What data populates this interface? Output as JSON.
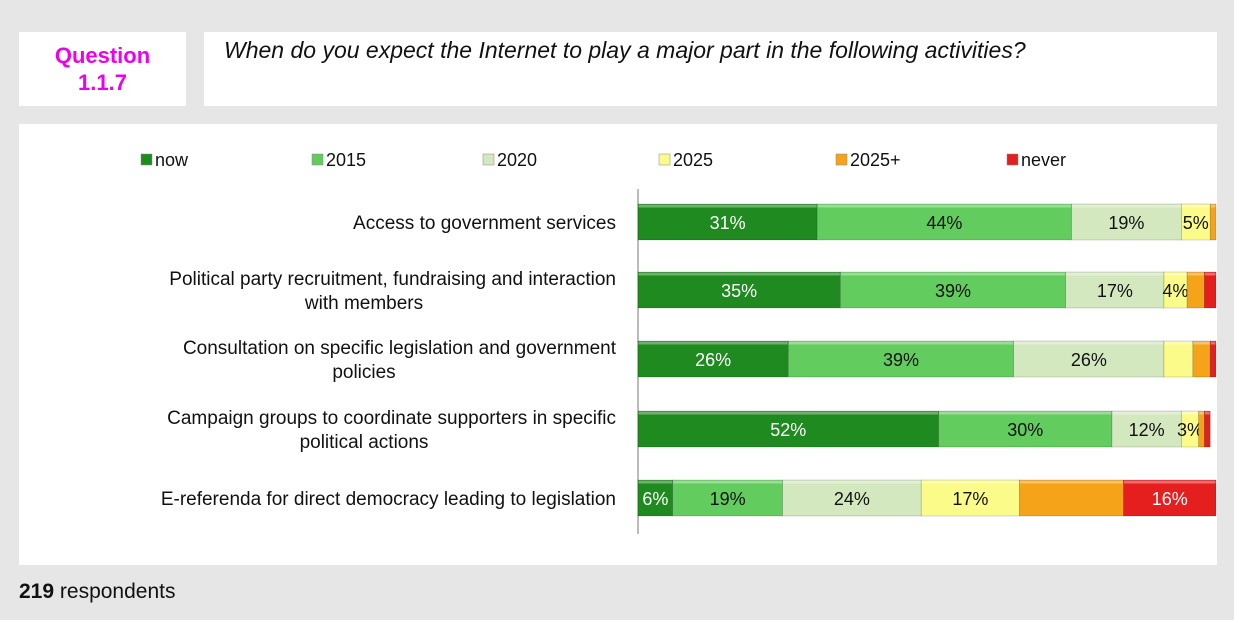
{
  "question": {
    "label": "Question",
    "number": "1.1.7",
    "text": "When do you expect the Internet to play a major part in the following activities?"
  },
  "footer": {
    "count": "219",
    "label": "respondents"
  },
  "colors": {
    "now": "#1f8a1f",
    "2015": "#62cc5e",
    "2020": "#d4e8c0",
    "2025": "#fbfb8a",
    "2025+": "#f5a318",
    "never": "#e51e1e"
  },
  "chart_data": {
    "type": "bar",
    "orientation": "horizontal",
    "stacked": true,
    "categories": [
      [
        "Access to government services"
      ],
      [
        "Political party recruitment, fundraising and interaction",
        "with members"
      ],
      [
        "Consultation on specific legislation and government",
        "policies"
      ],
      [
        "Campaign groups to coordinate supporters in specific",
        "political actions"
      ],
      [
        "E-referenda for direct democracy leading to legislation"
      ]
    ],
    "xlim": [
      0,
      100
    ],
    "grid": false,
    "legend": "top",
    "series": [
      {
        "name": "now",
        "values": [
          31,
          35,
          26,
          52,
          6
        ],
        "labels": [
          "31%",
          "35%",
          "26%",
          "52%",
          "6%"
        ]
      },
      {
        "name": "2015",
        "values": [
          44,
          39,
          39,
          30,
          19
        ],
        "labels": [
          "44%",
          "39%",
          "39%",
          "30%",
          "19%"
        ]
      },
      {
        "name": "2020",
        "values": [
          19,
          17,
          26,
          12,
          24
        ],
        "labels": [
          "19%",
          "17%",
          "26%",
          "12%",
          "24%"
        ]
      },
      {
        "name": "2025",
        "values": [
          5,
          4,
          5,
          3,
          17
        ],
        "labels": [
          "5%",
          "4%",
          "",
          "3%",
          "17%"
        ]
      },
      {
        "name": "2025+",
        "values": [
          1,
          3,
          3,
          1,
          18
        ],
        "labels": [
          "",
          "",
          "",
          "",
          ""
        ]
      },
      {
        "name": "never",
        "values": [
          0,
          2,
          1,
          1,
          16
        ],
        "labels": [
          "",
          "",
          "",
          "",
          "16%"
        ]
      }
    ]
  }
}
